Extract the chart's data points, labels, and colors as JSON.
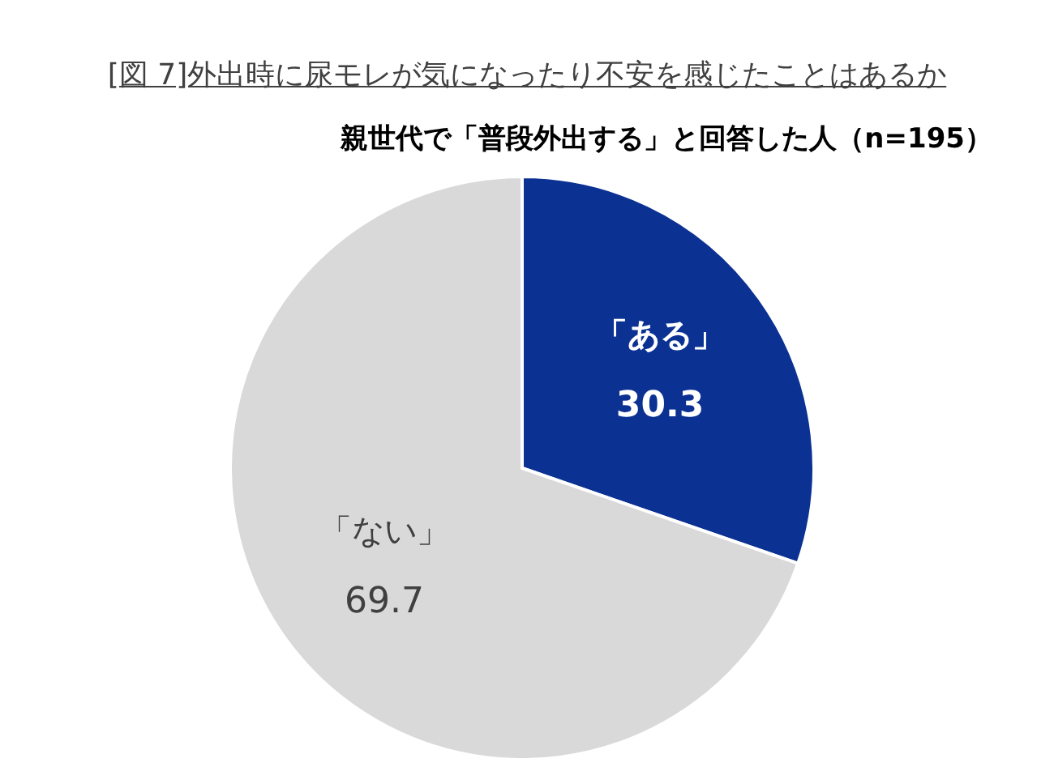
{
  "chart_data": {
    "type": "pie",
    "title": "[図 7]外出時に尿モレが気になったり不安を感じたことはあるか",
    "subtitle": "親世代で「普段外出する」と回答した人（n=195）",
    "categories": [
      "「ある」",
      "「ない」"
    ],
    "values": [
      30.3,
      69.7
    ],
    "colors": [
      "#0b3193",
      "#d9d9d9"
    ],
    "data_labels": true,
    "legend": false
  }
}
